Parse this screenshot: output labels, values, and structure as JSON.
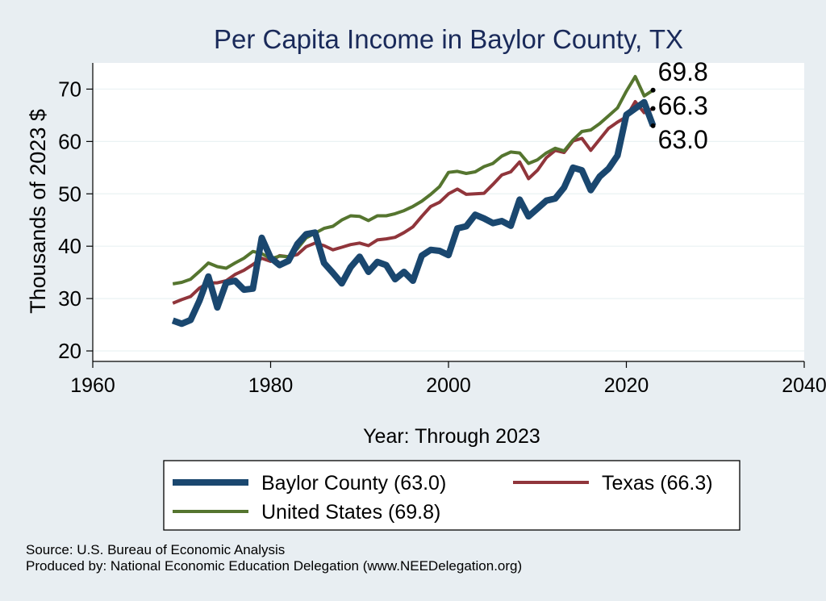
{
  "chart_data": {
    "type": "line",
    "title": "Per Capita Income in Baylor County, TX",
    "xlabel": "Year: Through 2023",
    "ylabel": "Thousands of 2023 $",
    "xlim": [
      1960,
      2040
    ],
    "ylim": [
      18,
      75
    ],
    "xticks": [
      "1960",
      "1980",
      "2000",
      "2020",
      "2040"
    ],
    "yticks": [
      "20",
      "30",
      "40",
      "50",
      "60",
      "70"
    ],
    "x": [
      1969,
      1970,
      1971,
      1972,
      1973,
      1974,
      1975,
      1976,
      1977,
      1978,
      1979,
      1980,
      1981,
      1982,
      1983,
      1984,
      1985,
      1986,
      1987,
      1988,
      1989,
      1990,
      1991,
      1992,
      1993,
      1994,
      1995,
      1996,
      1997,
      1998,
      1999,
      2000,
      2001,
      2002,
      2003,
      2004,
      2005,
      2006,
      2007,
      2008,
      2009,
      2010,
      2011,
      2012,
      2013,
      2014,
      2015,
      2016,
      2017,
      2018,
      2019,
      2020,
      2021,
      2022,
      2023
    ],
    "series": [
      {
        "name": "Baylor County",
        "legend": "Baylor County (63.0)",
        "color": "#1a476f",
        "width": 8,
        "end_label": "63.0",
        "values": [
          25.8,
          25.2,
          25.9,
          29.6,
          34.2,
          28.3,
          33.0,
          33.4,
          31.7,
          31.9,
          41.6,
          37.8,
          36.4,
          37.2,
          40.4,
          42.3,
          42.6,
          36.8,
          34.9,
          32.9,
          36.0,
          38.0,
          35.1,
          37.0,
          36.4,
          33.7,
          35.1,
          33.4,
          38.2,
          39.3,
          39.1,
          38.3,
          43.4,
          43.8,
          46.0,
          45.3,
          44.4,
          44.8,
          43.9,
          48.9,
          45.7,
          47.2,
          48.7,
          49.1,
          51.2,
          55.0,
          54.5,
          50.7,
          53.3,
          54.8,
          57.3,
          65.1,
          66.3,
          67.5,
          63.0
        ]
      },
      {
        "name": "Texas",
        "legend": "Texas (66.3)",
        "color": "#90353b",
        "width": 4,
        "end_label": "66.3",
        "values": [
          29.1,
          29.8,
          30.4,
          32.0,
          33.0,
          33.0,
          33.4,
          34.6,
          35.4,
          36.5,
          37.7,
          37.1,
          38.2,
          38.0,
          38.4,
          39.9,
          40.6,
          40.1,
          39.3,
          39.8,
          40.3,
          40.6,
          40.1,
          41.2,
          41.4,
          41.7,
          42.6,
          43.7,
          45.7,
          47.6,
          48.4,
          50.0,
          50.9,
          49.9,
          50.0,
          50.1,
          51.8,
          53.6,
          54.2,
          56.1,
          52.9,
          54.5,
          56.9,
          58.3,
          57.9,
          60.1,
          60.6,
          58.3,
          60.4,
          62.5,
          63.7,
          64.7,
          67.6,
          65.5,
          66.3
        ]
      },
      {
        "name": "United States",
        "legend": "United States (69.8)",
        "color": "#55752f",
        "width": 4,
        "end_label": "69.8",
        "values": [
          32.8,
          33.1,
          33.7,
          35.2,
          36.8,
          36.1,
          35.8,
          36.8,
          37.7,
          39.0,
          38.6,
          37.6,
          38.1,
          38.0,
          39.5,
          41.6,
          42.5,
          43.4,
          43.8,
          45.0,
          45.8,
          45.7,
          44.9,
          45.8,
          45.8,
          46.2,
          46.8,
          47.6,
          48.6,
          49.9,
          51.4,
          54.1,
          54.3,
          53.9,
          54.2,
          55.2,
          55.8,
          57.2,
          58.0,
          57.8,
          55.8,
          56.5,
          57.8,
          58.7,
          58.2,
          60.3,
          61.9,
          62.2,
          63.4,
          64.9,
          66.4,
          69.6,
          72.4,
          68.7,
          69.8
        ]
      }
    ],
    "legend": {
      "position": "bottom",
      "columns": 2
    }
  },
  "footer": {
    "source": "Source: U.S. Bureau of Economic Analysis",
    "produced": "Produced by: National Economic Education Delegation (www.NEEDelegation.org)"
  }
}
